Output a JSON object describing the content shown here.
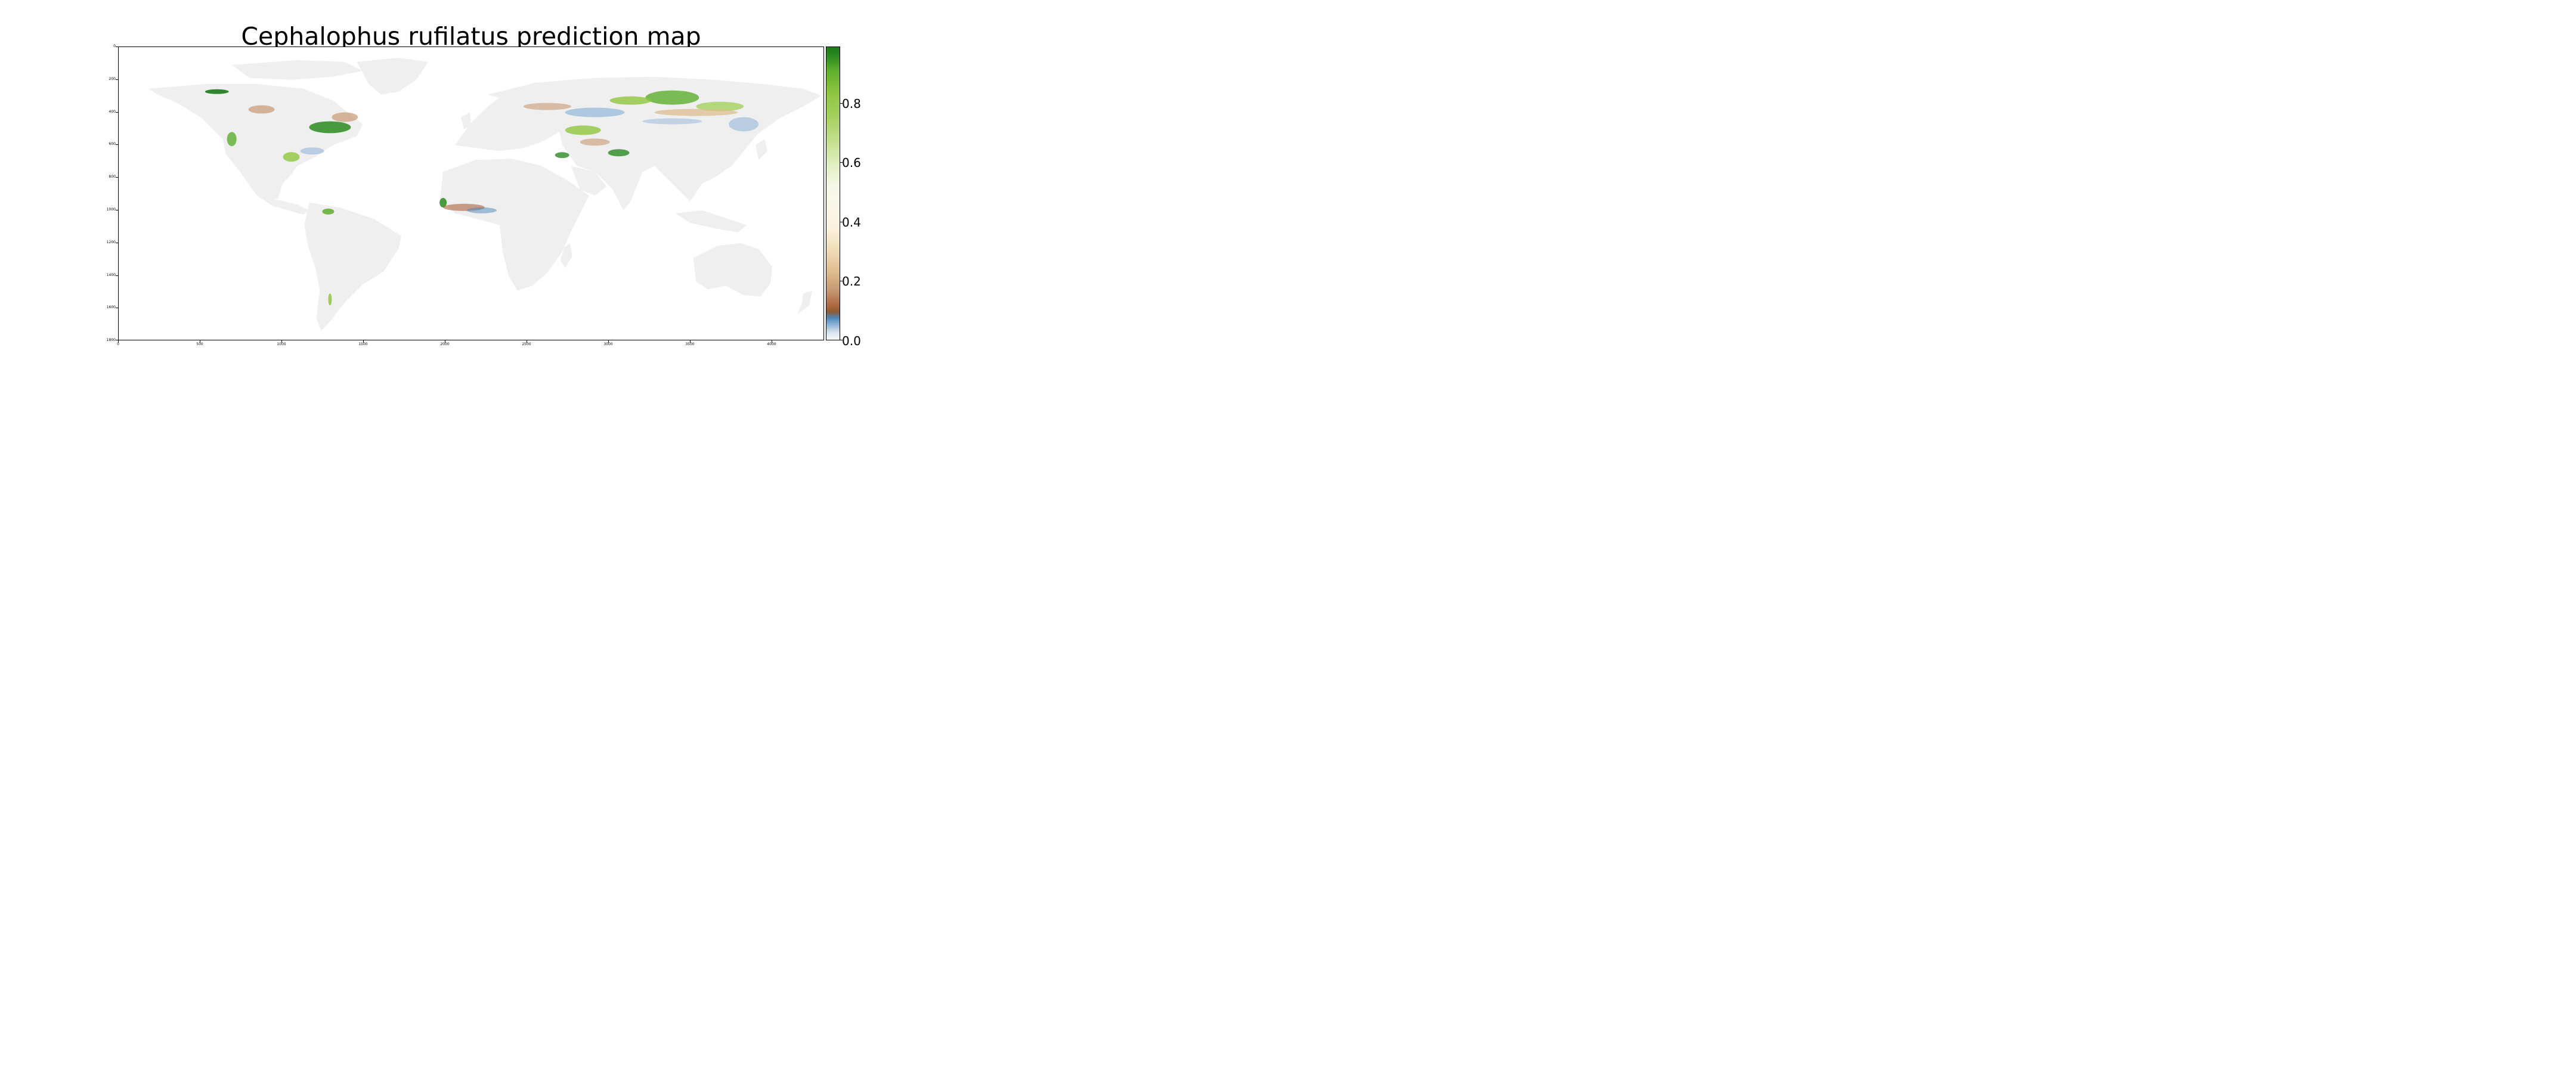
{
  "title": "Cephalophus rufilatus prediction map",
  "axes": {
    "y_ticks": [
      "0",
      "200",
      "400",
      "600",
      "800",
      "1000",
      "1200",
      "1400",
      "1600",
      "1800"
    ],
    "x_ticks": [
      "0",
      "500",
      "1000",
      "1500",
      "2000",
      "2500",
      "3000",
      "3500",
      "4000"
    ]
  },
  "colorbar": {
    "ticks": [
      "0.0",
      "0.2",
      "0.4",
      "0.6",
      "0.8"
    ],
    "range": [
      0.0,
      0.98
    ]
  },
  "colors": {
    "land": "#efefef",
    "high": "#1b7a1b",
    "mid_high": "#8fc63e",
    "mid": "#fbf2dd",
    "low_mid": "#c79873",
    "low": "#a9633b",
    "very_low": "#4b87b9"
  }
}
